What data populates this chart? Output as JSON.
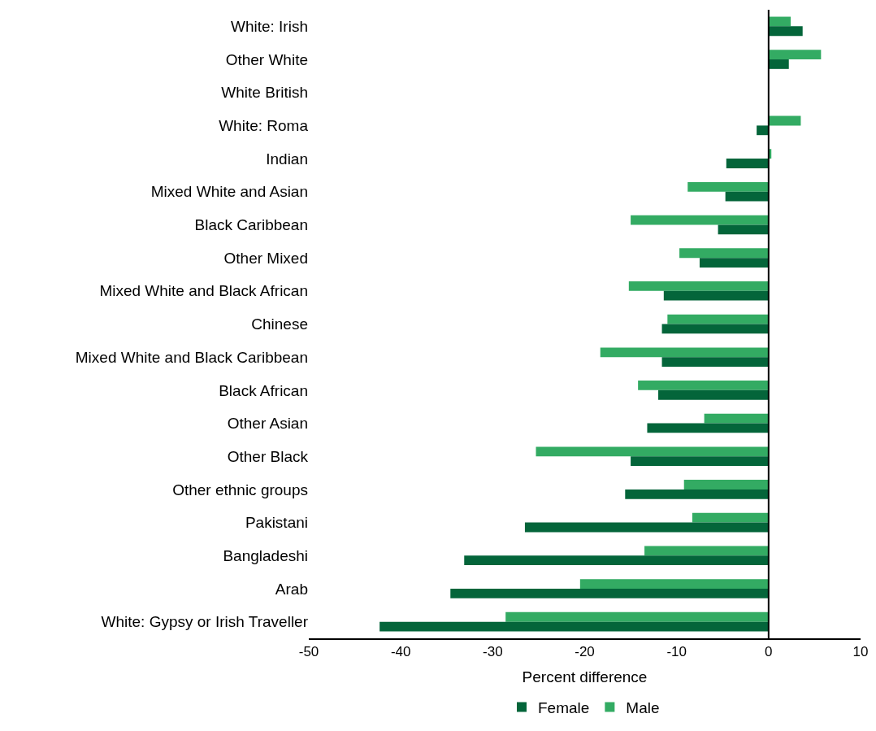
{
  "chart_data": {
    "type": "bar",
    "orientation": "horizontal",
    "xlabel": "Percent difference",
    "categories": [
      "White: Irish",
      "Other White",
      "White British",
      "White: Roma",
      "Indian",
      "Mixed White and Asian",
      "Black Caribbean",
      "Other Mixed",
      "Mixed White and Black African",
      "Chinese",
      "Mixed White and Black Caribbean",
      "Black African",
      "Other Asian",
      "Other Black",
      "Other ethnic groups",
      "Pakistani",
      "Bangladeshi",
      "Arab",
      "White: Gypsy or Irish Traveller"
    ],
    "series": [
      {
        "name": "Female",
        "color": "#04653a",
        "values": [
          3.7,
          2.2,
          0,
          -1.3,
          -4.6,
          -4.7,
          -5.5,
          -7.5,
          -11.4,
          -11.6,
          -11.6,
          -12.0,
          -13.2,
          -15.0,
          -15.6,
          -26.5,
          -33.1,
          -34.6,
          -42.3
        ]
      },
      {
        "name": "Male",
        "color": "#33ab63",
        "values": [
          2.4,
          5.7,
          0,
          3.5,
          0.3,
          -8.8,
          -15.0,
          -9.7,
          -15.2,
          -11.0,
          -18.3,
          -14.2,
          -7.0,
          -25.3,
          -9.2,
          -8.3,
          -13.5,
          -20.5,
          -28.6
        ]
      }
    ],
    "xlim": [
      -50,
      10
    ],
    "xticks": [
      -50,
      -40,
      -30,
      -20,
      -10,
      0,
      10
    ],
    "legend": "bottom",
    "ref_lines": [
      {
        "axis": "x",
        "value": 0,
        "color": "#000000"
      }
    ]
  }
}
